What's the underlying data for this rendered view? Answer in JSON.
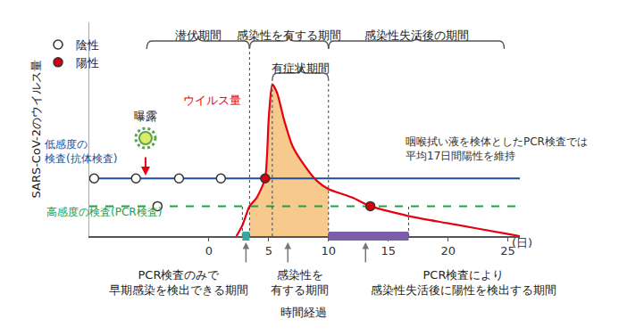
{
  "chart_data": {
    "type": "line",
    "y_label": "SARS-CoV-2のウイルス量",
    "x_label": "時間経過",
    "x_unit": "(日)",
    "xlim": [
      -10,
      26
    ],
    "xticks": [
      0,
      5,
      10,
      15,
      20,
      25
    ],
    "ylim": [
      0,
      100
    ],
    "yticks": [],
    "tick_labels": "x",
    "grid": false,
    "legend": "top-left",
    "curve": {
      "label": "ウイルス量",
      "color": "#e60012",
      "x": [
        2.3,
        2.8,
        3.4,
        4.0,
        4.7,
        5.0,
        5.3,
        5.7,
        6.3,
        7.0,
        8.0,
        9.0,
        10.0,
        12.0,
        13.5,
        17.0,
        20.0,
        25.0,
        26.0
      ],
      "values": [
        0,
        5,
        14,
        18,
        27,
        55,
        71,
        67,
        54,
        42,
        33,
        26,
        22,
        18,
        14,
        9,
        6,
        1,
        0
      ],
      "fill_range": [
        3.4,
        10
      ],
      "fill_color": "#f8c98c"
    },
    "points": [
      {
        "name": "陰性",
        "color": "#ffffff",
        "marker": "circle",
        "x": [
          -9.6,
          -6.1,
          -2.5,
          1.0,
          -4.3
        ],
        "values": [
          27,
          27,
          27,
          27,
          14
        ]
      },
      {
        "name": "陽性",
        "color": "#d7000f",
        "marker": "circle",
        "x": [
          4.7,
          13.5
        ],
        "values": [
          27,
          14
        ]
      }
    ],
    "thresholds": [
      {
        "label": "低感度の\n検査(抗体検査)",
        "value": 27,
        "color": "#1d4f9c",
        "line_style": "solid"
      },
      {
        "label": "高感度の検査(PCR検査)",
        "value": 14,
        "color": "#22a045",
        "line_style": "dash"
      }
    ],
    "exposure": {
      "label": "曝露",
      "x": -5.3,
      "color": "#e60012"
    },
    "periods": [
      {
        "label": "潜伏期間",
        "start": -5.2,
        "end": 3.4
      },
      {
        "label": "感染性を有する期間",
        "start": 3.4,
        "end": 10
      },
      {
        "label": "感染性失活後の期間",
        "start": 10,
        "end": 24.7
      }
    ],
    "symptom_period": {
      "label": "有症状期間",
      "start": 5.3,
      "end": 10
    },
    "guides": [
      {
        "x": 2.8,
        "y": 14
      },
      {
        "x": 3.4,
        "y": 87
      },
      {
        "x": 5.3,
        "y": 73
      },
      {
        "x": 10,
        "y": 73
      },
      {
        "x": 16.7,
        "y": 14
      }
    ],
    "bands": [
      {
        "start": 2.8,
        "end": 3.4,
        "color": "#3ba5a0"
      },
      {
        "start": 10,
        "end": 16.7,
        "color": "#7b5ea7"
      }
    ],
    "notes": [
      {
        "text": "PCR検査のみで\n早期感染を検出できる期間",
        "x": 3.1
      },
      {
        "text": "感染性を\n有する期間",
        "x": 6.6
      },
      {
        "text": "PCR検査により\n感染性失活後に陽性を検出する期間",
        "x": 13.1
      }
    ],
    "side_note": "咽喉拭い液を検体としたPCR検査では\n平均17日間陽性を維持"
  }
}
